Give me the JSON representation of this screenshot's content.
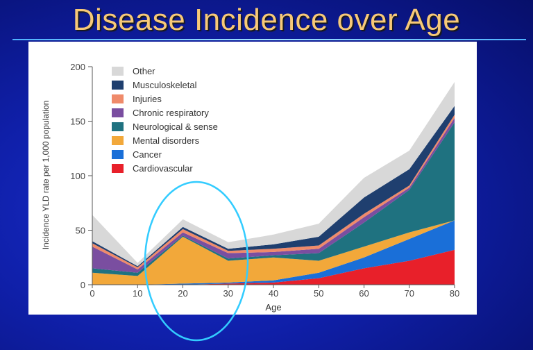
{
  "slide": {
    "title": "Disease Incidence over Age"
  },
  "chart_data": {
    "type": "area",
    "stacked": true,
    "xlabel": "Age",
    "ylabel": "Incidence YLD rate per 1,000 population",
    "x": [
      0,
      10,
      20,
      30,
      40,
      50,
      60,
      70,
      80
    ],
    "xticks": [
      0,
      10,
      20,
      30,
      40,
      50,
      60,
      70,
      80
    ],
    "xlim": [
      0,
      80
    ],
    "ylim": [
      0,
      200
    ],
    "yticks": [
      0,
      50,
      100,
      150,
      200
    ],
    "legend_position": "top-left",
    "series": [
      {
        "name": "Cardiovascular",
        "color": "#e8202a",
        "values": [
          0,
          0,
          0,
          1,
          2,
          6,
          15,
          22,
          32
        ]
      },
      {
        "name": "Cancer",
        "color": "#1a6fd8",
        "values": [
          0,
          0,
          1,
          1,
          2,
          5,
          10,
          20,
          27
        ]
      },
      {
        "name": "Mental disorders",
        "color": "#f2a83a",
        "values": [
          11,
          8,
          43,
          20,
          21,
          11,
          10,
          6,
          0
        ]
      },
      {
        "name": "Neurological & sense",
        "color": "#1f7280",
        "values": [
          4,
          3,
          1,
          2,
          2,
          7,
          22,
          39,
          90
        ]
      },
      {
        "name": "Chronic respiratory",
        "color": "#7a4ea0",
        "values": [
          20,
          3,
          3,
          5,
          3,
          4,
          5,
          2,
          4
        ]
      },
      {
        "name": "Injuries",
        "color": "#ef8a6a",
        "values": [
          3,
          2,
          3,
          2,
          3,
          3,
          3,
          2,
          3
        ]
      },
      {
        "name": "Musculoskeletal",
        "color": "#1f3f6f",
        "values": [
          2,
          1,
          2,
          2,
          4,
          8,
          15,
          15,
          8
        ]
      },
      {
        "name": "Other",
        "color": "#d8d8d8",
        "values": [
          24,
          3,
          7,
          6,
          9,
          12,
          18,
          17,
          22
        ]
      }
    ],
    "annotation": {
      "shape": "ellipse",
      "color": "#33ccff",
      "x_range": [
        12,
        34
      ]
    }
  }
}
